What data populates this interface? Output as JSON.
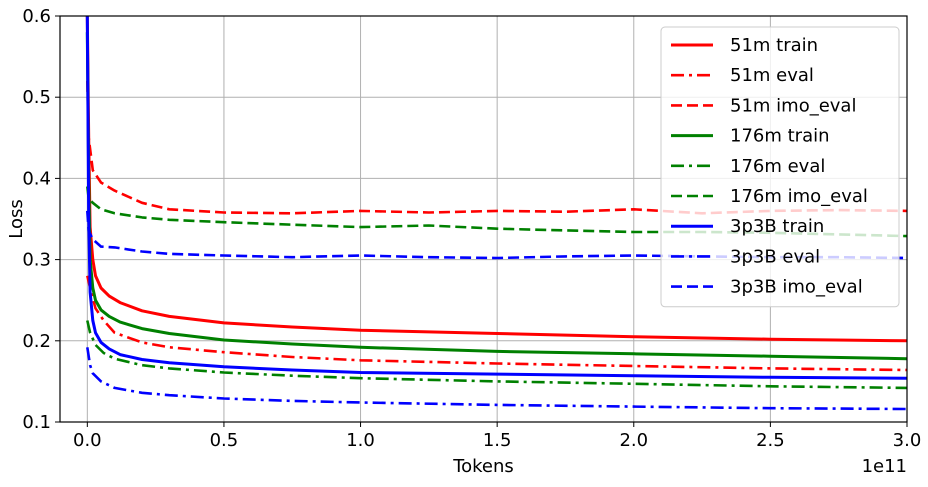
{
  "chart_data": {
    "type": "line",
    "xlabel": "Tokens",
    "ylabel": "Loss",
    "x_offset_label": "1e11",
    "xlim": [
      -0.1,
      3.0
    ],
    "ylim": [
      0.1,
      0.6
    ],
    "xticks": [
      0.0,
      0.5,
      1.0,
      1.5,
      2.0,
      2.5,
      3.0
    ],
    "xtick_labels": [
      "0.0",
      "0.5",
      "1.0",
      "1.5",
      "2.0",
      "2.5",
      "3.0"
    ],
    "yticks": [
      0.1,
      0.2,
      0.3,
      0.4,
      0.5,
      0.6
    ],
    "ytick_labels": [
      "0.1",
      "0.2",
      "0.3",
      "0.4",
      "0.5",
      "0.6"
    ],
    "grid": true,
    "legend_position": "top-right",
    "series": [
      {
        "name": "51m train",
        "color": "#ff0000",
        "style": "solid",
        "x": [
          0.0,
          0.005,
          0.01,
          0.02,
          0.03,
          0.05,
          0.08,
          0.12,
          0.2,
          0.3,
          0.5,
          0.75,
          1.0,
          1.5,
          2.0,
          2.5,
          3.0
        ],
        "y": [
          0.6,
          0.45,
          0.34,
          0.3,
          0.28,
          0.265,
          0.255,
          0.247,
          0.237,
          0.23,
          0.222,
          0.217,
          0.213,
          0.209,
          0.205,
          0.202,
          0.2
        ]
      },
      {
        "name": "51m eval",
        "color": "#ff0000",
        "style": "dashdot",
        "x": [
          0.0,
          0.01,
          0.03,
          0.06,
          0.1,
          0.2,
          0.3,
          0.5,
          0.75,
          1.0,
          1.5,
          2.0,
          2.5,
          3.0
        ],
        "y": [
          0.28,
          0.265,
          0.24,
          0.225,
          0.21,
          0.198,
          0.192,
          0.186,
          0.18,
          0.176,
          0.172,
          0.169,
          0.166,
          0.164
        ]
      },
      {
        "name": "51m imo_eval",
        "color": "#ff0000",
        "style": "dashed",
        "x": [
          0.0,
          0.005,
          0.02,
          0.05,
          0.1,
          0.2,
          0.3,
          0.5,
          0.75,
          1.0,
          1.25,
          1.5,
          1.75,
          2.0,
          2.25,
          2.5,
          2.75,
          3.0
        ],
        "y": [
          0.52,
          0.45,
          0.41,
          0.395,
          0.385,
          0.37,
          0.362,
          0.358,
          0.357,
          0.36,
          0.358,
          0.36,
          0.359,
          0.362,
          0.357,
          0.36,
          0.361,
          0.36
        ]
      },
      {
        "name": "176m train",
        "color": "#008000",
        "style": "solid",
        "x": [
          0.0,
          0.005,
          0.01,
          0.02,
          0.03,
          0.05,
          0.08,
          0.12,
          0.2,
          0.3,
          0.5,
          0.75,
          1.0,
          1.5,
          2.0,
          2.5,
          3.0
        ],
        "y": [
          0.58,
          0.4,
          0.3,
          0.265,
          0.25,
          0.238,
          0.23,
          0.223,
          0.215,
          0.209,
          0.201,
          0.196,
          0.192,
          0.187,
          0.184,
          0.181,
          0.178
        ]
      },
      {
        "name": "176m eval",
        "color": "#008000",
        "style": "dashdot",
        "x": [
          0.0,
          0.01,
          0.03,
          0.06,
          0.1,
          0.2,
          0.3,
          0.5,
          0.75,
          1.0,
          1.5,
          2.0,
          2.5,
          3.0
        ],
        "y": [
          0.225,
          0.21,
          0.195,
          0.185,
          0.178,
          0.17,
          0.166,
          0.161,
          0.157,
          0.154,
          0.15,
          0.147,
          0.144,
          0.142
        ]
      },
      {
        "name": "176m imo_eval",
        "color": "#008000",
        "style": "dashed",
        "x": [
          0.0,
          0.005,
          0.02,
          0.05,
          0.1,
          0.2,
          0.3,
          0.5,
          0.75,
          1.0,
          1.25,
          1.5,
          1.75,
          2.0,
          2.25,
          2.5,
          2.75,
          3.0
        ],
        "y": [
          0.39,
          0.375,
          0.37,
          0.362,
          0.357,
          0.352,
          0.349,
          0.346,
          0.343,
          0.34,
          0.342,
          0.338,
          0.336,
          0.334,
          0.334,
          0.333,
          0.331,
          0.329
        ]
      },
      {
        "name": "3p3B train",
        "color": "#0000ff",
        "style": "solid",
        "x": [
          0.0,
          0.005,
          0.01,
          0.02,
          0.03,
          0.05,
          0.08,
          0.12,
          0.2,
          0.3,
          0.5,
          0.75,
          1.0,
          1.5,
          2.0,
          2.5,
          3.0
        ],
        "y": [
          0.6,
          0.35,
          0.26,
          0.225,
          0.21,
          0.198,
          0.19,
          0.183,
          0.177,
          0.173,
          0.168,
          0.164,
          0.161,
          0.159,
          0.157,
          0.155,
          0.154
        ]
      },
      {
        "name": "3p3B eval",
        "color": "#0000ff",
        "style": "dashdot",
        "x": [
          0.0,
          0.01,
          0.02,
          0.05,
          0.1,
          0.2,
          0.3,
          0.5,
          0.75,
          1.0,
          1.5,
          2.0,
          2.5,
          3.0
        ],
        "y": [
          0.192,
          0.17,
          0.16,
          0.15,
          0.142,
          0.136,
          0.133,
          0.129,
          0.126,
          0.124,
          0.121,
          0.119,
          0.117,
          0.116
        ]
      },
      {
        "name": "3p3B imo_eval",
        "color": "#0000ff",
        "style": "dashed",
        "x": [
          0.0,
          0.005,
          0.02,
          0.05,
          0.1,
          0.2,
          0.3,
          0.5,
          0.75,
          1.0,
          1.25,
          1.5,
          1.75,
          2.0,
          2.25,
          2.5,
          2.75,
          3.0
        ],
        "y": [
          0.36,
          0.335,
          0.325,
          0.316,
          0.315,
          0.31,
          0.307,
          0.305,
          0.303,
          0.305,
          0.303,
          0.302,
          0.304,
          0.305,
          0.304,
          0.303,
          0.303,
          0.302
        ]
      }
    ]
  }
}
